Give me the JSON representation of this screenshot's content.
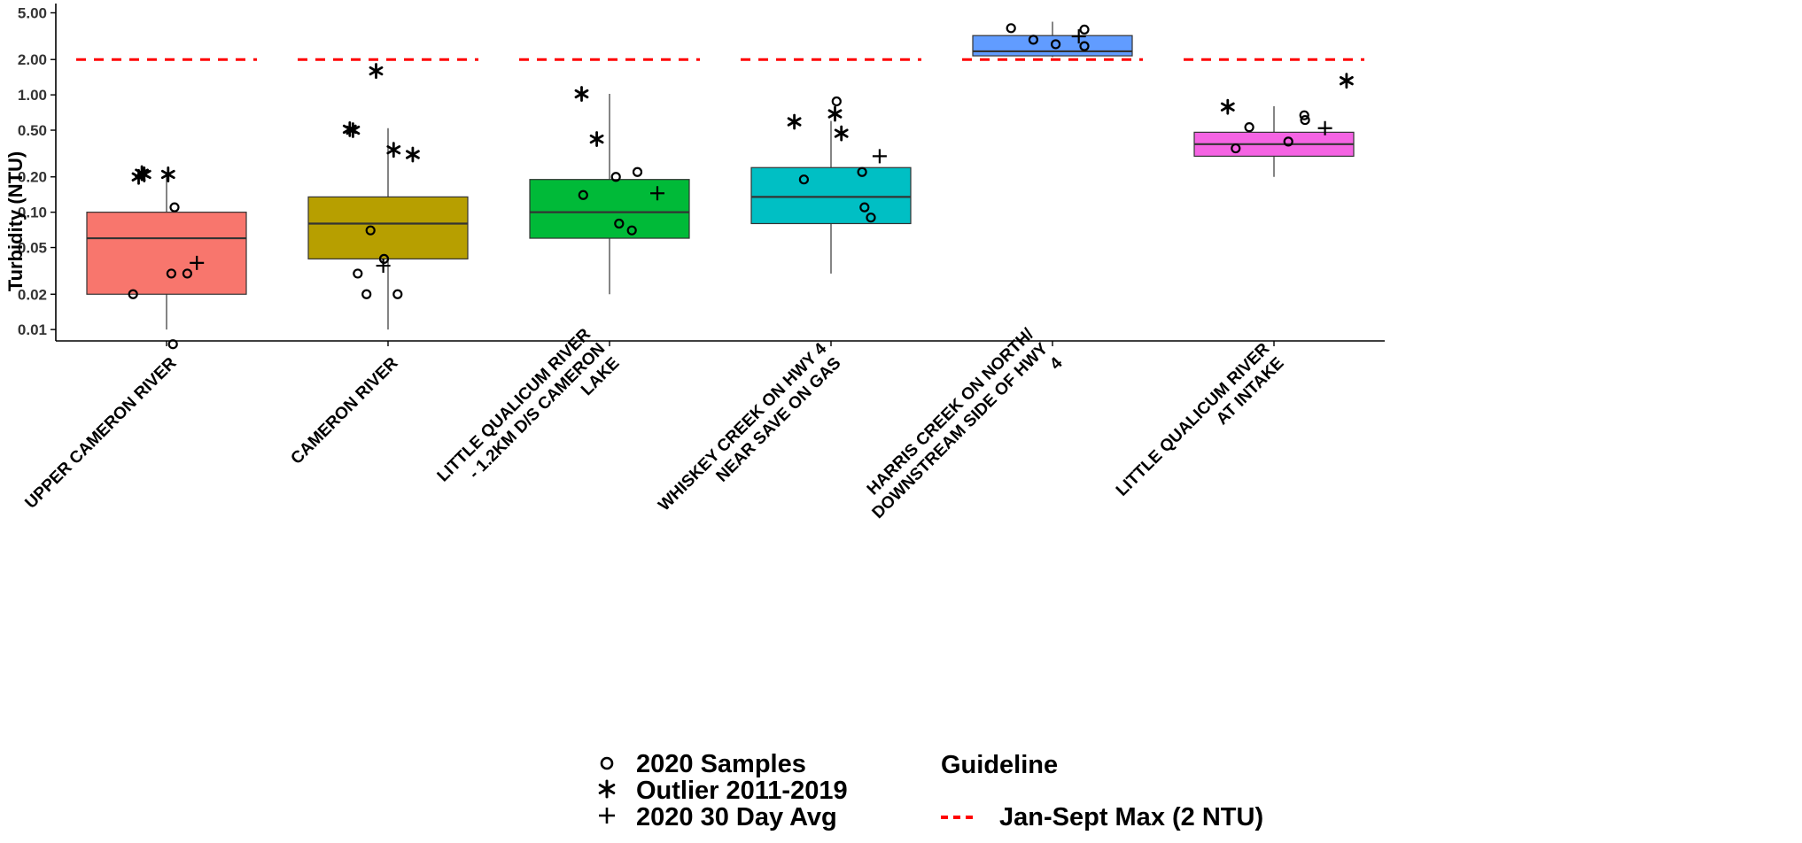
{
  "chart_data": {
    "type": "box",
    "title": "",
    "xlabel": "",
    "ylabel": "Turbidity (NTU)",
    "y_scale": "log10",
    "ylim": [
      0.008,
      6.0
    ],
    "y_ticks": [
      0.01,
      0.02,
      0.05,
      0.1,
      0.2,
      0.5,
      1.0,
      2.0,
      5.0
    ],
    "y_tick_labels": [
      "0.01",
      "0.02",
      "0.05",
      "0.10",
      "0.20",
      "0.50",
      "1.00",
      "2.00",
      "5.00"
    ],
    "grid": false,
    "guideline": {
      "value": 2.0,
      "color": "#ff0000",
      "style": "dashed",
      "name": "Jan-Sept Max (2 NTU)"
    },
    "categories": [
      "UPPER CAMERON RIVER",
      "CAMERON RIVER",
      "LITTLE QUALICUM RIVER - 1.2KM D/S CAMERON LAKE",
      "WHISKEY CREEK ON HWY 4 NEAR SAVE ON GAS",
      "HARRIS CREEK ON NORTH/ DOWNSTREAM SIDE OF HWY 4",
      "LITTLE QUALICUM RIVER AT INTAKE"
    ],
    "category_lines": [
      [
        "UPPER CAMERON RIVER"
      ],
      [
        "CAMERON RIVER"
      ],
      [
        "LITTLE QUALICUM RIVER",
        "- 1.2KM D/S CAMERON",
        "LAKE"
      ],
      [
        "WHISKEY CREEK ON HWY 4",
        "NEAR SAVE ON GAS"
      ],
      [
        "HARRIS CREEK ON NORTH/",
        "DOWNSTREAM SIDE OF HWY",
        "4"
      ],
      [
        "LITTLE QUALICUM RIVER",
        "AT INTAKE"
      ]
    ],
    "boxes": [
      {
        "color": "#F8766D",
        "whisker_low": 0.01,
        "q1": 0.02,
        "median": 0.06,
        "q3": 0.1,
        "whisker_high": 0.21
      },
      {
        "color": "#B79F00",
        "whisker_low": 0.01,
        "q1": 0.04,
        "median": 0.08,
        "q3": 0.135,
        "whisker_high": 0.52
      },
      {
        "color": "#00BA38",
        "whisker_low": 0.02,
        "q1": 0.06,
        "median": 0.1,
        "q3": 0.19,
        "whisker_high": 1.02
      },
      {
        "color": "#00BFC4",
        "whisker_low": 0.03,
        "q1": 0.08,
        "median": 0.135,
        "q3": 0.24,
        "whisker_high": 0.6
      },
      {
        "color": "#619CFF",
        "whisker_low": 2.1,
        "q1": 2.15,
        "median": 2.35,
        "q3": 3.2,
        "whisker_high": 4.2
      },
      {
        "color": "#F564E3",
        "whisker_low": 0.2,
        "q1": 0.3,
        "median": 0.38,
        "q3": 0.48,
        "whisker_high": 0.8
      }
    ],
    "series": [
      {
        "name": "2020 Samples",
        "marker": "open-circle",
        "points": [
          {
            "cat": 0,
            "dx": -0.42,
            "y": 0.02
          },
          {
            "cat": 0,
            "dx": 0.1,
            "y": 0.11
          },
          {
            "cat": 0,
            "dx": 0.06,
            "y": 0.03
          },
          {
            "cat": 0,
            "dx": 0.26,
            "y": 0.03
          },
          {
            "cat": 0,
            "dx": 0.08,
            "y": 0.0075
          },
          {
            "cat": 1,
            "dx": -0.22,
            "y": 0.07
          },
          {
            "cat": 1,
            "dx": -0.38,
            "y": 0.03
          },
          {
            "cat": 1,
            "dx": -0.27,
            "y": 0.02
          },
          {
            "cat": 1,
            "dx": 0.12,
            "y": 0.02
          },
          {
            "cat": 1,
            "dx": -0.05,
            "y": 0.04
          },
          {
            "cat": 2,
            "dx": -0.33,
            "y": 0.14
          },
          {
            "cat": 2,
            "dx": 0.08,
            "y": 0.2
          },
          {
            "cat": 2,
            "dx": 0.35,
            "y": 0.22
          },
          {
            "cat": 2,
            "dx": 0.12,
            "y": 0.08
          },
          {
            "cat": 2,
            "dx": 0.28,
            "y": 0.07
          },
          {
            "cat": 3,
            "dx": -0.34,
            "y": 0.19
          },
          {
            "cat": 3,
            "dx": 0.07,
            "y": 0.88
          },
          {
            "cat": 3,
            "dx": 0.39,
            "y": 0.22
          },
          {
            "cat": 3,
            "dx": 0.42,
            "y": 0.11
          },
          {
            "cat": 3,
            "dx": 0.5,
            "y": 0.09
          },
          {
            "cat": 4,
            "dx": -0.52,
            "y": 3.7
          },
          {
            "cat": 4,
            "dx": -0.24,
            "y": 2.95
          },
          {
            "cat": 4,
            "dx": 0.04,
            "y": 2.7
          },
          {
            "cat": 4,
            "dx": 0.4,
            "y": 3.6
          },
          {
            "cat": 4,
            "dx": 0.4,
            "y": 2.6
          },
          {
            "cat": 5,
            "dx": -0.48,
            "y": 0.35
          },
          {
            "cat": 5,
            "dx": -0.31,
            "y": 0.53
          },
          {
            "cat": 5,
            "dx": 0.18,
            "y": 0.4
          },
          {
            "cat": 5,
            "dx": 0.38,
            "y": 0.67
          },
          {
            "cat": 5,
            "dx": 0.39,
            "y": 0.61
          }
        ]
      },
      {
        "name": "Outlier 2011-2019",
        "marker": "asterisk",
        "points": [
          {
            "cat": 0,
            "dx": -0.35,
            "y": 0.2
          },
          {
            "cat": 0,
            "dx": -0.31,
            "y": 0.215
          },
          {
            "cat": 0,
            "dx": -0.28,
            "y": 0.21
          },
          {
            "cat": 0,
            "dx": 0.02,
            "y": 0.21
          },
          {
            "cat": 1,
            "dx": -0.48,
            "y": 0.51
          },
          {
            "cat": 1,
            "dx": -0.44,
            "y": 0.5
          },
          {
            "cat": 1,
            "dx": -0.15,
            "y": 1.6
          },
          {
            "cat": 1,
            "dx": 0.07,
            "y": 0.34
          },
          {
            "cat": 1,
            "dx": 0.31,
            "y": 0.31
          },
          {
            "cat": 2,
            "dx": -0.35,
            "y": 1.02
          },
          {
            "cat": 2,
            "dx": -0.16,
            "y": 0.42
          },
          {
            "cat": 3,
            "dx": -0.46,
            "y": 0.59
          },
          {
            "cat": 3,
            "dx": 0.05,
            "y": 0.69
          },
          {
            "cat": 3,
            "dx": 0.13,
            "y": 0.47
          },
          {
            "cat": 5,
            "dx": -0.58,
            "y": 0.79
          },
          {
            "cat": 5,
            "dx": 0.91,
            "y": 1.32
          }
        ]
      },
      {
        "name": "2020 30 Day Avg",
        "marker": "plus",
        "points": [
          {
            "cat": 0,
            "dx": 0.38,
            "y": 0.037
          },
          {
            "cat": 1,
            "dx": -0.06,
            "y": 0.035
          },
          {
            "cat": 2,
            "dx": 0.6,
            "y": 0.145
          },
          {
            "cat": 3,
            "dx": 0.61,
            "y": 0.3
          },
          {
            "cat": 4,
            "dx": 0.33,
            "y": 3.15
          },
          {
            "cat": 5,
            "dx": 0.64,
            "y": 0.52
          }
        ]
      }
    ],
    "legend": {
      "placement": "bottom",
      "items": [
        "2020 Samples",
        "Outlier 2011-2019",
        "2020 30 Day Avg"
      ],
      "guideline_title": "Guideline",
      "guideline_label": "Jan-Sept Max (2 NTU)"
    }
  }
}
